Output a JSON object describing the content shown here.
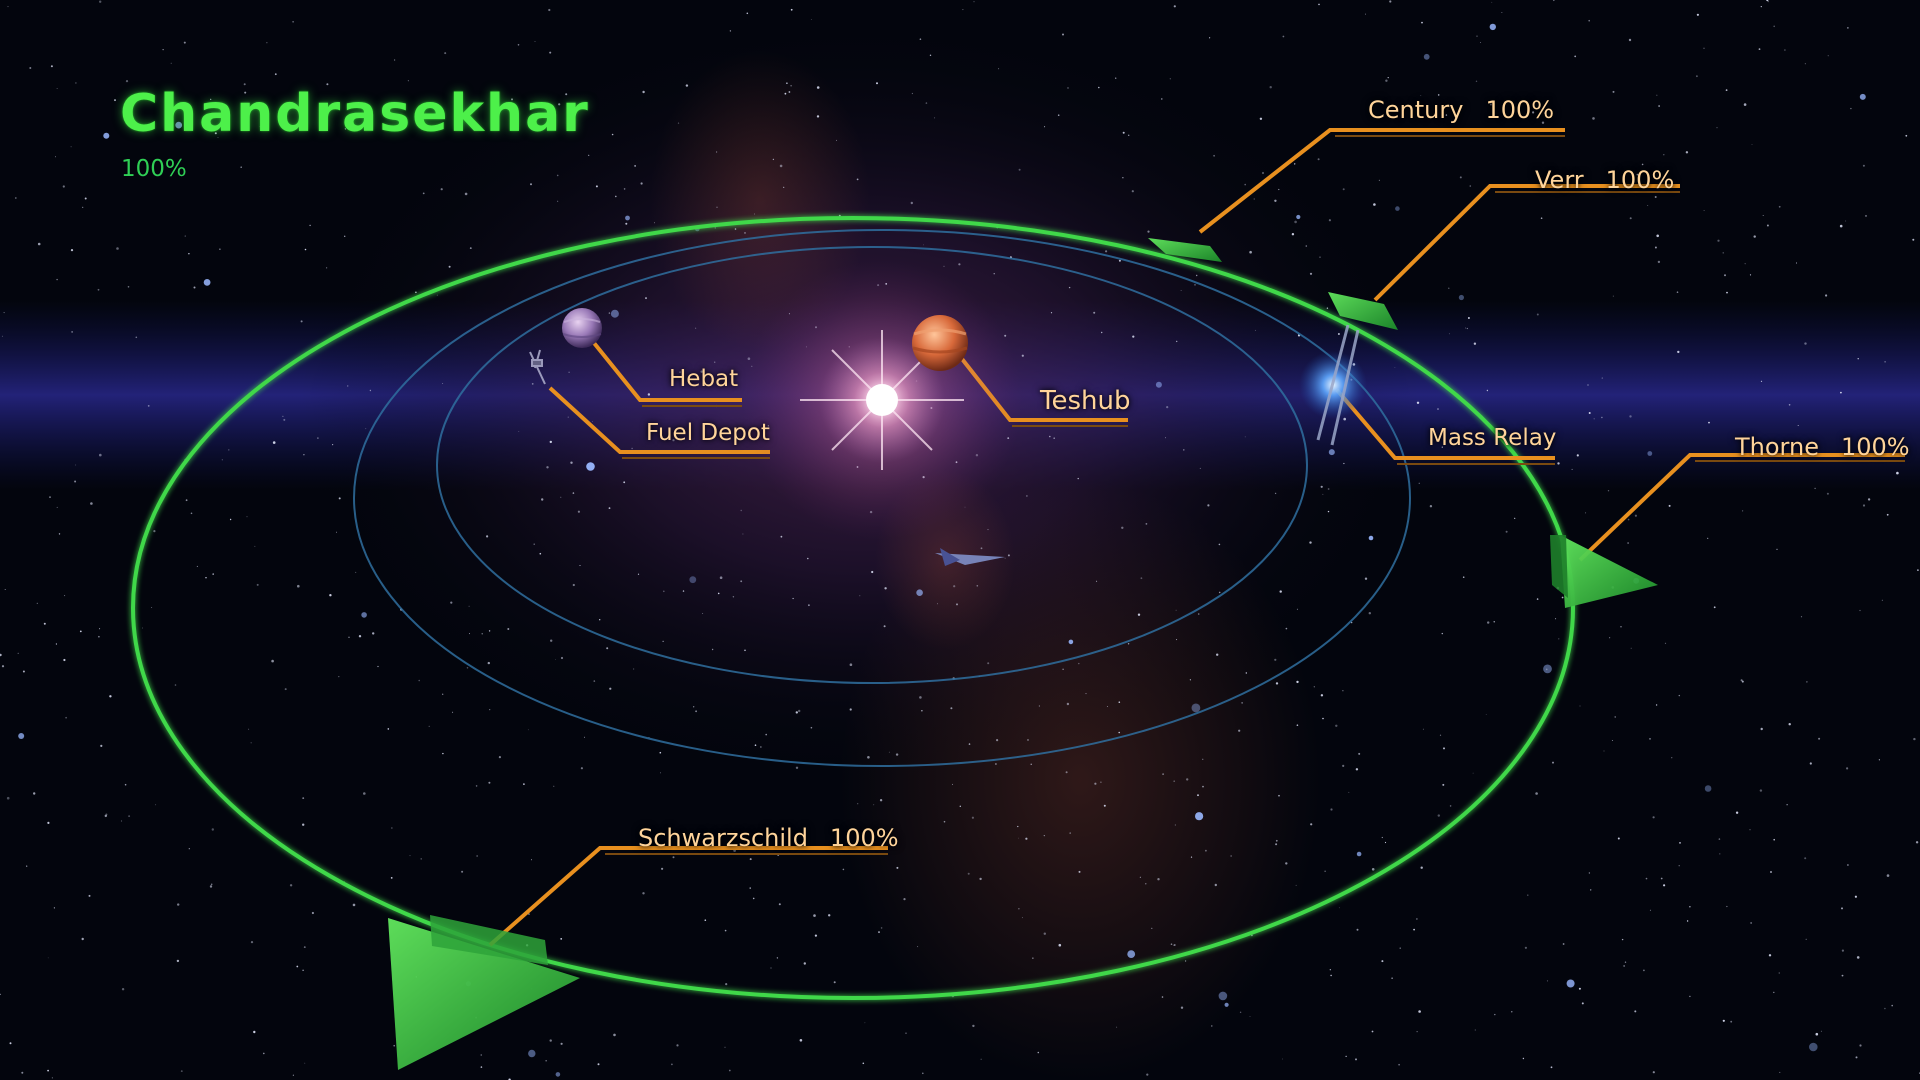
{
  "system": {
    "name": "Chandrasekhar",
    "exploration": "100%"
  },
  "clusters": [
    {
      "name": "Century",
      "exploration": "100%"
    },
    {
      "name": "Verr",
      "exploration": "100%"
    },
    {
      "name": "Thorne",
      "exploration": "100%"
    },
    {
      "name": "Schwarzschild",
      "exploration": "100%"
    }
  ],
  "bodies": [
    {
      "name": "Hebat"
    },
    {
      "name": "Fuel Depot"
    },
    {
      "name": "Teshub"
    },
    {
      "name": "Mass Relay"
    }
  ],
  "colors": {
    "title_green": "#4df04a",
    "route_green": "#3fd84a",
    "label_orange": "#ffd49a",
    "leader_orange": "#e8901f",
    "orbit_blue": "#2f6f9f"
  },
  "icons": {
    "star": "star-icon",
    "planet": "planet-icon",
    "ship": "normandy-ship-icon",
    "relay": "mass-relay-icon",
    "route_arrow": "route-arrow-icon"
  }
}
